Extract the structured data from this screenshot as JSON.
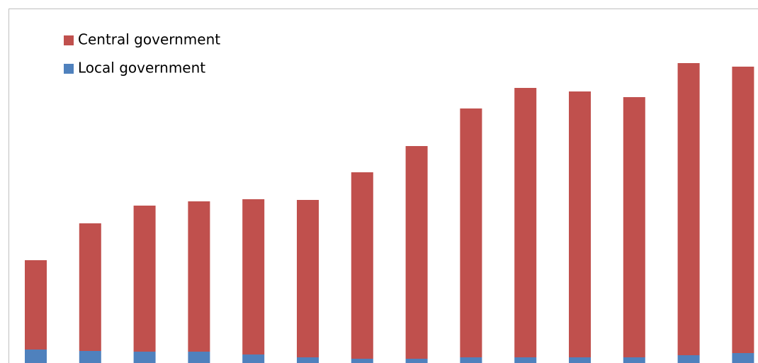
{
  "chart_data": {
    "type": "stacked-bar",
    "categories": [
      null,
      null,
      null,
      null,
      null,
      null,
      null,
      null,
      null,
      null,
      null,
      null,
      null,
      null
    ],
    "series": [
      {
        "name": "Local government",
        "color": "#4f81bd",
        "values": [
          19,
          17,
          16,
          16,
          12,
          8,
          6,
          6,
          8,
          8,
          8,
          8,
          11,
          14
        ]
      },
      {
        "name": "Central government",
        "color": "#c0504d",
        "values": [
          126,
          180,
          206,
          212,
          219,
          222,
          263,
          300,
          351,
          380,
          375,
          367,
          412,
          404
        ]
      }
    ],
    "ylim": [
      0,
      500
    ]
  }
}
